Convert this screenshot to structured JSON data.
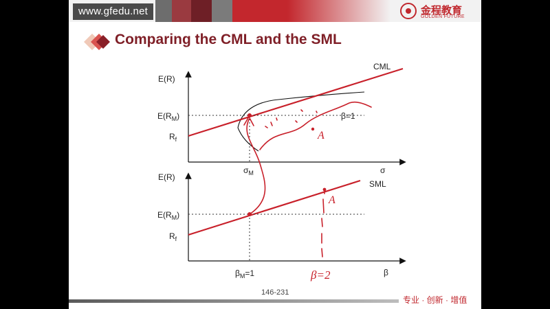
{
  "header": {
    "site_url": "www.gfedu.net",
    "logo": {
      "name_cn": "金程教育",
      "name_en": "GOLDEN FUTURE"
    }
  },
  "slide": {
    "title": "Comparing the CML and the SML",
    "page_number": "146-231",
    "footer_slogan": "专业 · 创新 · 增值"
  },
  "colors": {
    "accent": "#c0272d",
    "title": "#7f1f27",
    "line": "#c8202a",
    "ink": "#c8202a"
  },
  "chart_data": [
    {
      "type": "line",
      "title": "",
      "series": [
        {
          "name": "CML"
        }
      ],
      "xlabel": "σ",
      "ylabel": "E(R)",
      "tick_labels": {
        "x": [
          "σ_M"
        ],
        "y": [
          "E(R_M)",
          "R_f"
        ]
      },
      "annotations": [
        "β=1",
        "A"
      ],
      "curves": [
        "efficient-frontier-curve"
      ]
    },
    {
      "type": "line",
      "title": "",
      "series": [
        {
          "name": "SML"
        }
      ],
      "xlabel": "β",
      "ylabel": "E(R)",
      "tick_labels": {
        "x": [
          "β_M=1"
        ],
        "y": [
          "E(R_M)",
          "R_f"
        ]
      },
      "annotations": [
        "A",
        "β=2"
      ]
    }
  ],
  "labels": {
    "cml": {
      "name": "CML",
      "ylabel": "E(R)",
      "xlabel": "σ",
      "y_tick_erm_main": "E(R",
      "y_tick_erm_sub": "M",
      "y_tick_erm_close": ")",
      "y_tick_rf_main": "R",
      "y_tick_rf_sub": "f",
      "x_tick_main": "σ",
      "x_tick_sub": "M",
      "annotation_beta": "β=1",
      "annotation_a": "A"
    },
    "sml": {
      "name": "SML",
      "ylabel": "E(R)",
      "xlabel": "β",
      "y_tick_erm_main": "E(R",
      "y_tick_erm_sub": "M",
      "y_tick_erm_close": ")",
      "y_tick_rf_main": "R",
      "y_tick_rf_sub": "f",
      "x_tick_main": "β",
      "x_tick_sub": "M",
      "x_tick_rest": "=1",
      "annotation_a": "A",
      "annotation_beta": "β=2"
    }
  }
}
